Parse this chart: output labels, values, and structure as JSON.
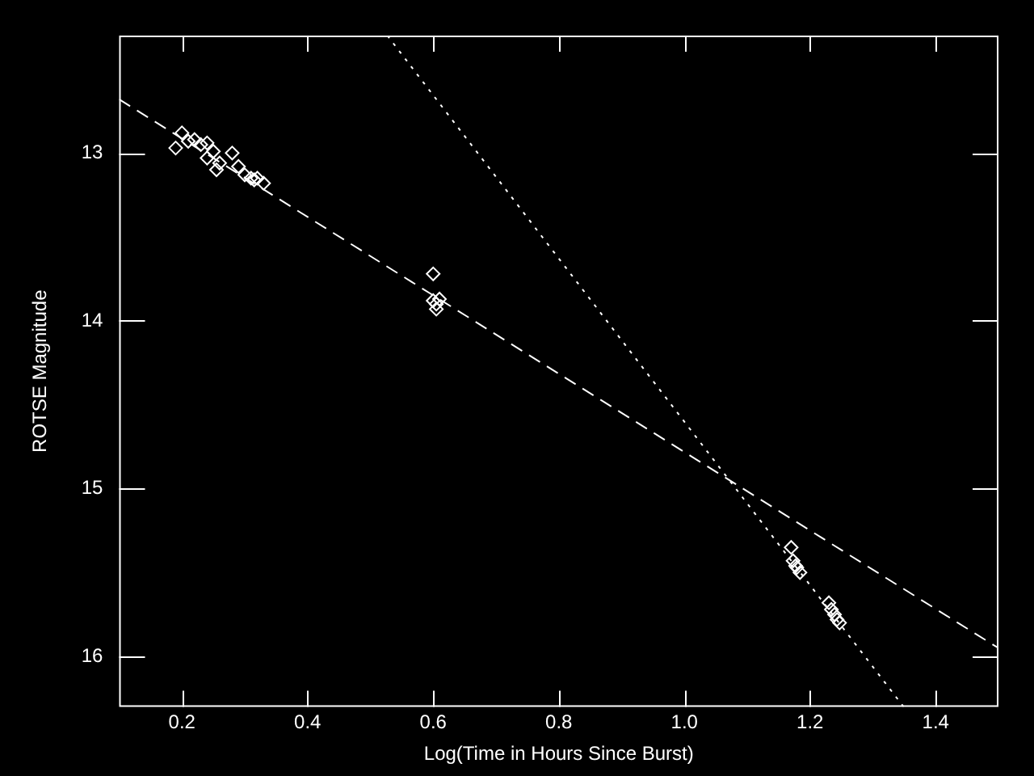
{
  "chart_data": {
    "type": "scatter",
    "xlabel": "Log(Time in Hours Since Burst)",
    "ylabel": "ROTSE Magnitude",
    "xlim": [
      0.1,
      1.5
    ],
    "xticks": [
      {
        "value": 0.2,
        "label": "0.2"
      },
      {
        "value": 0.4,
        "label": "0.4"
      },
      {
        "value": 0.6,
        "label": "0.6"
      },
      {
        "value": 0.8,
        "label": "0.8"
      },
      {
        "value": 1.0,
        "label": "1.0"
      },
      {
        "value": 1.2,
        "label": "1.2"
      },
      {
        "value": 1.4,
        "label": "1.4"
      }
    ],
    "ylim": [
      16.3,
      12.3
    ],
    "yticks": [
      13,
      14,
      15,
      16
    ],
    "grid": false,
    "legend": false,
    "marker": "diamond",
    "series": [
      {
        "color": "#ffffff",
        "x": [
          0.19,
          0.2,
          0.21,
          0.22,
          0.23,
          0.24,
          0.25,
          0.24,
          0.255,
          0.26,
          0.28,
          0.29,
          0.3,
          0.31,
          0.32,
          0.33,
          0.315,
          0.6,
          0.6,
          0.605,
          0.61,
          0.605,
          1.17,
          1.173,
          1.179,
          1.184,
          1.177,
          1.23,
          1.234,
          1.239,
          1.243,
          1.247
        ],
        "values": [
          12.97,
          12.88,
          12.93,
          12.92,
          12.95,
          12.94,
          12.99,
          13.03,
          13.1,
          13.06,
          13.0,
          13.08,
          13.13,
          13.15,
          13.15,
          13.18,
          13.16,
          13.72,
          13.88,
          13.9,
          13.87,
          13.93,
          15.35,
          15.43,
          15.47,
          15.5,
          15.46,
          15.68,
          15.72,
          15.75,
          15.78,
          15.8
        ]
      },
      {
        "type": "line",
        "color": "#ffffff",
        "line_style": "dashed",
        "marker": "none",
        "x": [
          0.1,
          1.5
        ],
        "values": [
          12.68,
          15.95
        ]
      },
      {
        "type": "line",
        "color": "#ffffff",
        "line_style": "dotted",
        "marker": "none",
        "x": [
          0.527,
          1.349
        ],
        "values": [
          12.3,
          16.3
        ]
      }
    ]
  }
}
